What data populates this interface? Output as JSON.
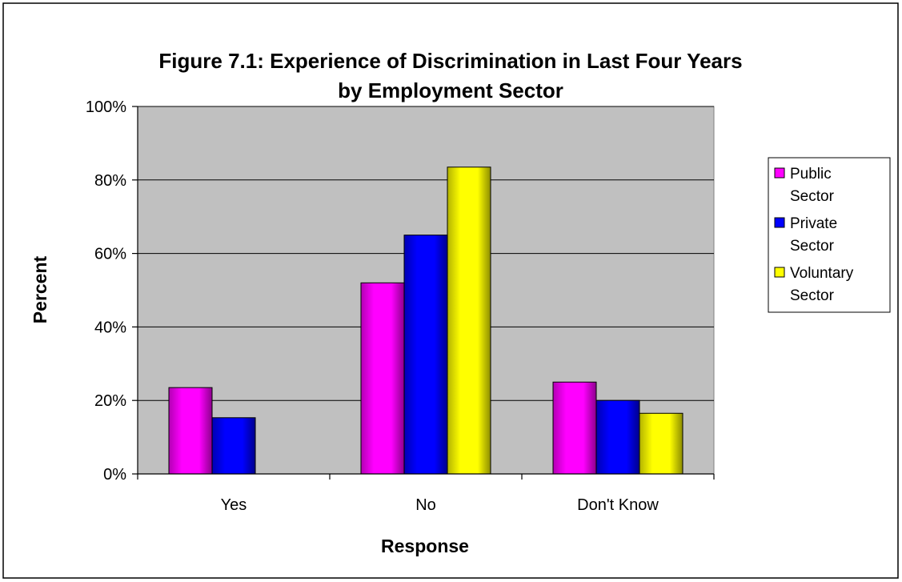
{
  "chart_data": {
    "type": "bar",
    "title": "Figure 7.1: Experience of Discrimination in Last Four Years",
    "subtitle": "by  Employment Sector",
    "xlabel": "Response",
    "ylabel": "Percent",
    "categories": [
      "Yes",
      "No",
      "Don't Know"
    ],
    "ylim": [
      0,
      100
    ],
    "yticks": [
      "0%",
      "20%",
      "40%",
      "60%",
      "80%",
      "100%"
    ],
    "grid": true,
    "legend_position": "right",
    "series": [
      {
        "name": "Public Sector",
        "legend_lines": [
          "Public",
          "Sector"
        ],
        "color": "#ff00ff",
        "values": [
          23.5,
          52,
          25
        ]
      },
      {
        "name": "Private Sector",
        "legend_lines": [
          "Private",
          "Sector"
        ],
        "color": "#0000ff",
        "values": [
          15.3,
          65,
          20
        ]
      },
      {
        "name": "Voluntary Sector",
        "legend_lines": [
          "Voluntary",
          "Sector"
        ],
        "color": "#ffff00",
        "values": [
          0,
          83.5,
          16.5
        ]
      }
    ]
  },
  "style": {
    "plot_background": "#c0c0c0",
    "page_border": "#000000"
  }
}
